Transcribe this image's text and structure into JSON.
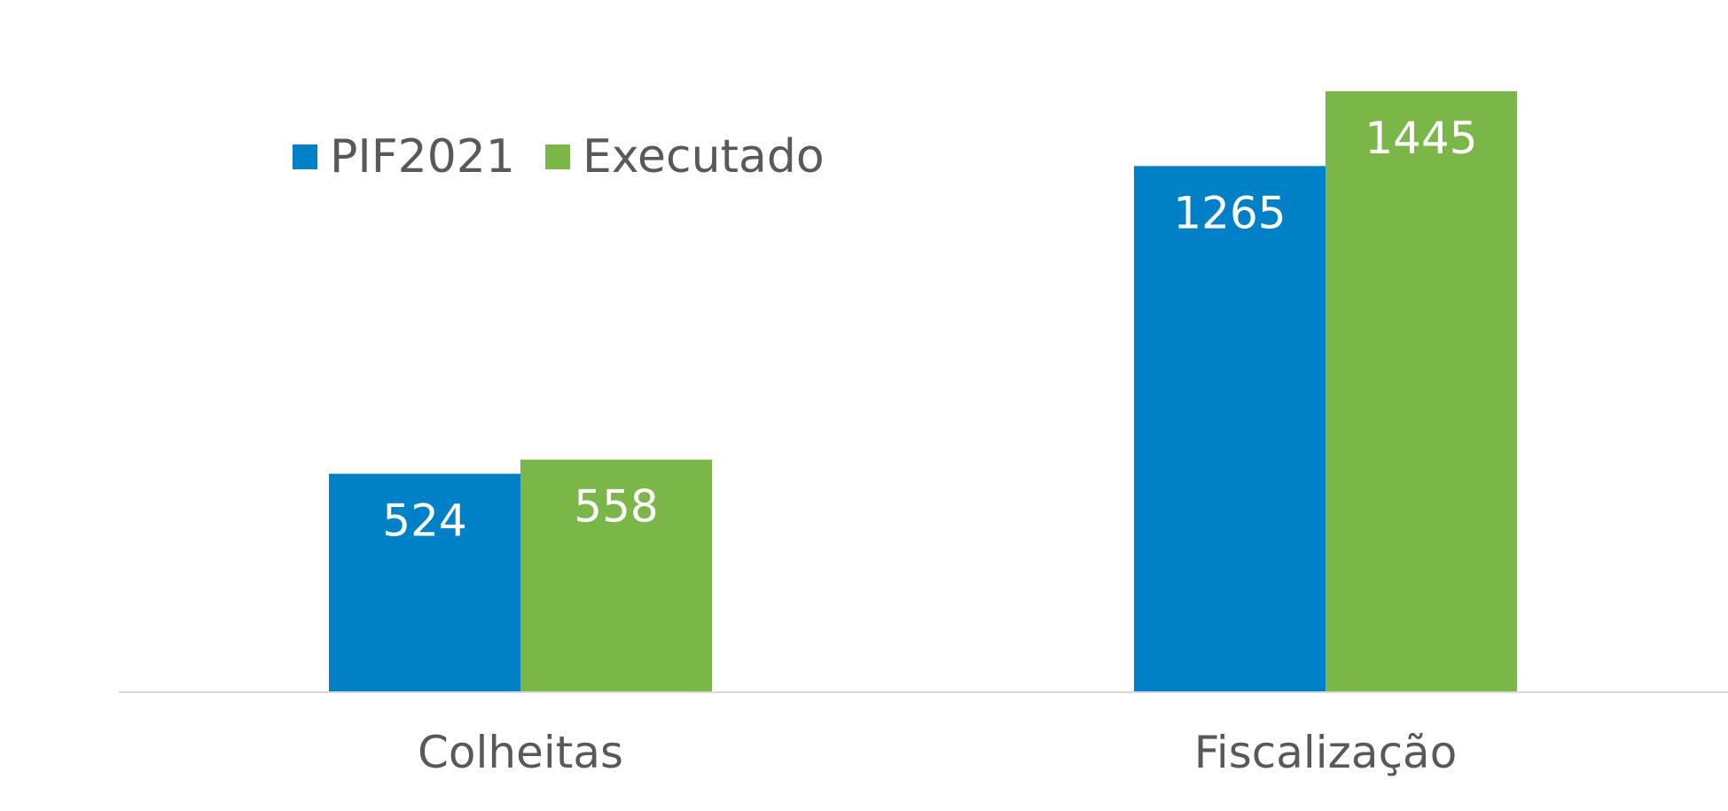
{
  "chart_data": {
    "type": "bar",
    "categories": [
      "Colheitas",
      "Fiscalização"
    ],
    "series": [
      {
        "name": "PIF2021",
        "values": [
          524,
          1265
        ]
      },
      {
        "name": "Executado",
        "values": [
          558,
          1445
        ]
      }
    ],
    "ylim": [
      0,
      1445
    ],
    "grid": false,
    "legend_position": "top-left",
    "data_labels": "inside-top",
    "colors": {
      "series": [
        "#0080c7",
        "#7ab648"
      ],
      "axis_line": "#d9d9d9",
      "axis_text": "#595959",
      "legend_text": "#595959",
      "data_label": "#ffffff"
    }
  }
}
